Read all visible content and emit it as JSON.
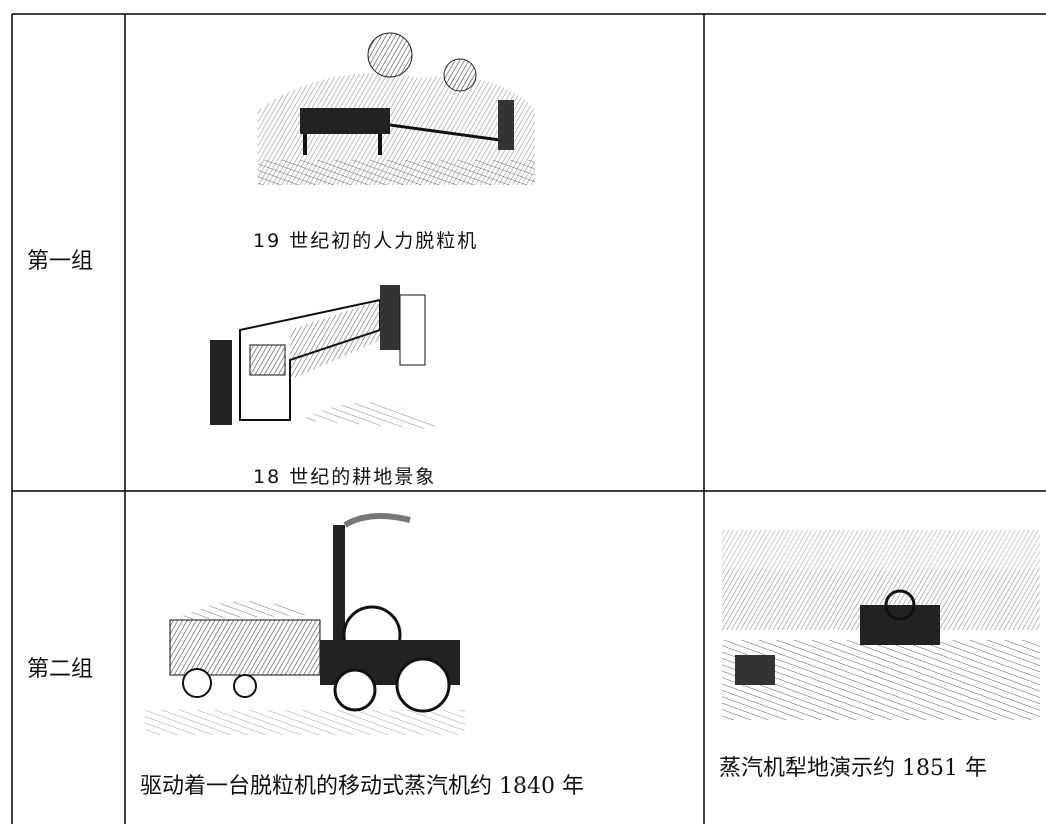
{
  "table": {
    "rows": [
      {
        "label": "第一组",
        "captions": [
          "19 世纪初的人力脱粒机",
          "18 世纪的耕地景象"
        ]
      },
      {
        "label": "第二组",
        "captions": [
          "驱动着一台脱粒机的移动式蒸汽机约 1840 年",
          "蒸汽机犁地演示约 1851 年"
        ]
      }
    ]
  }
}
